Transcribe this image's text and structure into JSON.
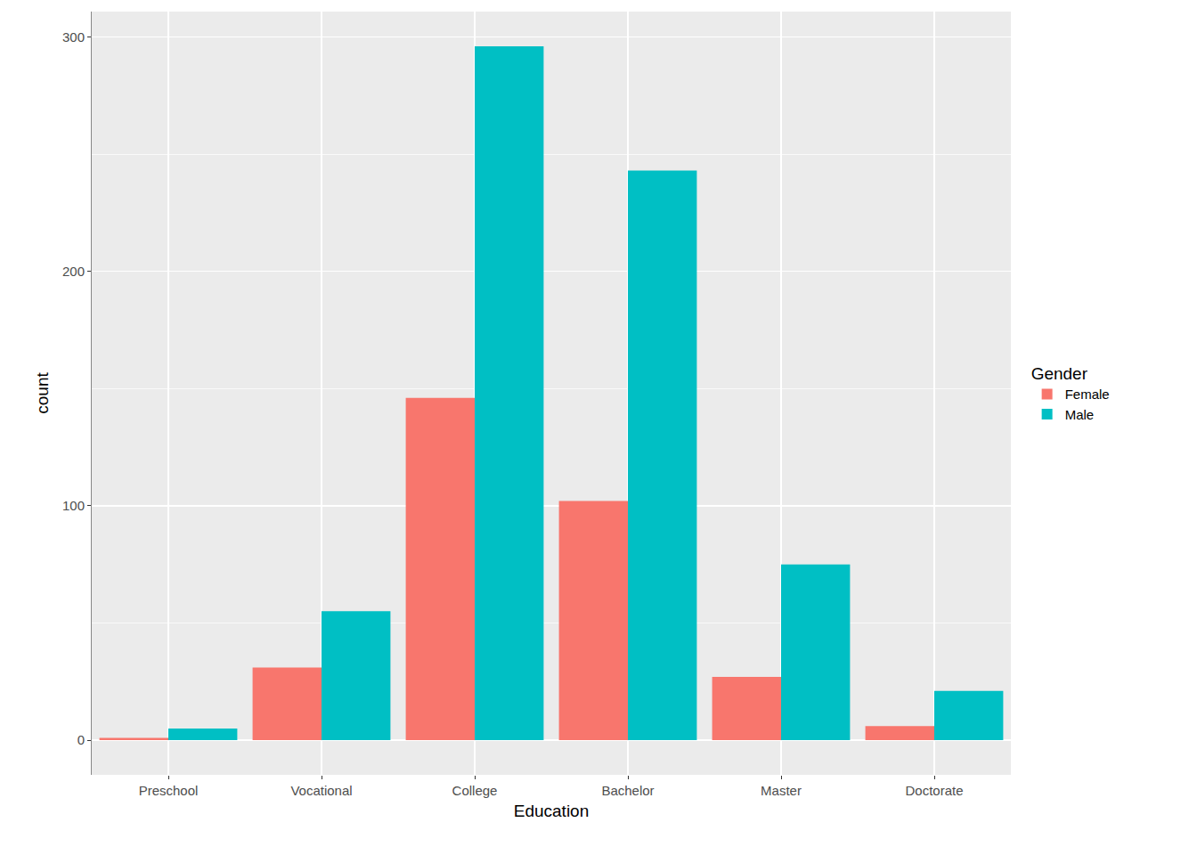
{
  "chart_data": {
    "type": "bar",
    "xlabel": "Education",
    "ylabel": "count",
    "categories": [
      "Preschool",
      "Vocational",
      "College",
      "Bachelor",
      "Master",
      "Doctorate"
    ],
    "series": [
      {
        "name": "Female",
        "color": "#F8766D",
        "values": [
          1,
          31,
          146,
          102,
          27,
          6
        ]
      },
      {
        "name": "Male",
        "color": "#00BFC4",
        "values": [
          5,
          55,
          296,
          243,
          75,
          21
        ]
      }
    ],
    "legend_title": "Gender",
    "legend": "right",
    "ylim": [
      -14.8,
      310.8
    ],
    "yticks": [
      0,
      100,
      200,
      300
    ],
    "grid": true
  }
}
